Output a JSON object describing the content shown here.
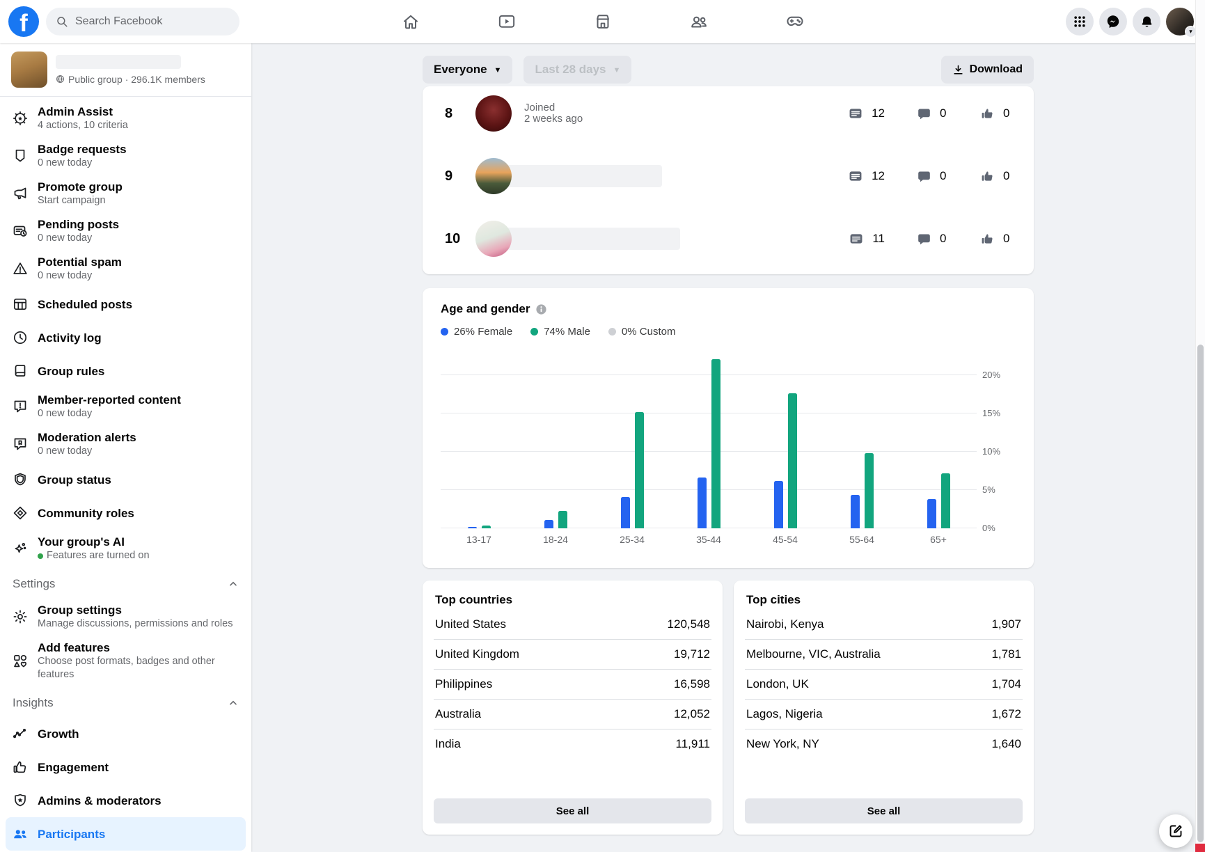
{
  "colors": {
    "facebook_blue": "#1877f2",
    "active_item_bg": "#e7f3ff",
    "female_blue": "#2463f0",
    "male_green": "#12a57e",
    "custom_gray": "#ced0d4",
    "background": "#f0f2f5",
    "text_secondary": "#65676b",
    "online_green": "#31a24c"
  },
  "topbar": {
    "search_placeholder": "Search Facebook",
    "nav_tabs": [
      {
        "icon": "home"
      },
      {
        "icon": "watch"
      },
      {
        "icon": "marketplace"
      },
      {
        "icon": "groups"
      },
      {
        "icon": "gaming"
      }
    ],
    "actions": [
      {
        "icon": "apps-grid"
      },
      {
        "icon": "messenger"
      },
      {
        "icon": "notifications"
      },
      {
        "icon": "account-avatar"
      }
    ]
  },
  "sidebar": {
    "group": {
      "privacy_and_members": "Public group · 296.1K members"
    },
    "items": [
      {
        "icon": "admin-assist",
        "label": "Admin Assist",
        "sub": "4 actions, 10 criteria"
      },
      {
        "icon": "badge",
        "label": "Badge requests",
        "sub": "0 new today"
      },
      {
        "icon": "megaphone",
        "label": "Promote group",
        "sub": "Start campaign"
      },
      {
        "icon": "pending-posts",
        "label": "Pending posts",
        "sub": "0 new today"
      },
      {
        "icon": "warning",
        "label": "Potential spam",
        "sub": "0 new today"
      },
      {
        "icon": "calendar",
        "label": "Scheduled posts"
      },
      {
        "icon": "clock",
        "label": "Activity log"
      },
      {
        "icon": "book",
        "label": "Group rules"
      },
      {
        "icon": "report",
        "label": "Member-reported content",
        "sub": "0 new today"
      },
      {
        "icon": "mod-alert",
        "label": "Moderation alerts",
        "sub": "0 new today"
      },
      {
        "icon": "shield",
        "label": "Group status"
      },
      {
        "icon": "diamond",
        "label": "Community roles"
      },
      {
        "icon": "ai-sparkle",
        "label": "Your group's AI",
        "sub": "Features are turned on",
        "sub_dot": true
      }
    ],
    "settings_header": "Settings",
    "settings_items": [
      {
        "icon": "gear",
        "label": "Group settings",
        "sub": "Manage discussions, permissions and roles"
      },
      {
        "icon": "shapes",
        "label": "Add features",
        "sub": "Choose post formats, badges and other features"
      }
    ],
    "insights_header": "Insights",
    "insights_items": [
      {
        "icon": "growth",
        "label": "Growth"
      },
      {
        "icon": "thumb",
        "label": "Engagement"
      },
      {
        "icon": "shield-star",
        "label": "Admins & moderators"
      },
      {
        "icon": "people",
        "label": "Participants",
        "active": true
      }
    ]
  },
  "toolbar": {
    "audience_filter": "Everyone",
    "date_filter": "Last 28 days",
    "download_label": "Download"
  },
  "participants": {
    "rows": [
      {
        "rank": "8",
        "joined_line1": "Joined",
        "joined_line2": "2 weeks ago",
        "posts": "12",
        "comments": "0",
        "reactions": "0",
        "name_redacted": false,
        "avatar_gradient": "radial-gradient(circle at 50% 40%, #8a2f2f 0%, #5c1414 55%, #2e0808 100%)"
      },
      {
        "rank": "9",
        "posts": "12",
        "comments": "0",
        "reactions": "0",
        "name_redacted": true,
        "redact_width": 250,
        "avatar_gradient": "linear-gradient(180deg, #9ebbd0 0%, #e8a45c 40%, #4a5a3a 70%, #2e3a28 100%)"
      },
      {
        "rank": "10",
        "posts": "11",
        "comments": "0",
        "reactions": "0",
        "name_redacted": true,
        "redact_width": 276,
        "avatar_gradient": "linear-gradient(160deg, #f2efe9 0%, #dfe8df 45%, #e8a7b8 75%, #c2577e 100%)"
      }
    ]
  },
  "chart_data": {
    "type": "bar",
    "title": "Age and gender",
    "categories": [
      "13-17",
      "18-24",
      "25-34",
      "35-44",
      "45-54",
      "55-64",
      "65+"
    ],
    "series": [
      {
        "name": "Female",
        "legend": "26% Female",
        "color": "#2463f0",
        "values": [
          0.2,
          1.1,
          4.1,
          6.6,
          6.2,
          4.4,
          3.8
        ]
      },
      {
        "name": "Male",
        "legend": "74% Male",
        "color": "#12a57e",
        "values": [
          0.4,
          2.3,
          15.2,
          22.1,
          17.6,
          9.8,
          7.2
        ]
      },
      {
        "name": "Custom",
        "legend": "0% Custom",
        "color": "#ced0d4",
        "values": [
          0,
          0,
          0,
          0,
          0,
          0,
          0
        ]
      }
    ],
    "yticks": [
      {
        "label": "0%",
        "value": 0
      },
      {
        "label": "5%",
        "value": 5
      },
      {
        "label": "10%",
        "value": 10
      },
      {
        "label": "15%",
        "value": 15
      },
      {
        "label": "20%",
        "value": 20
      }
    ],
    "ylim": [
      0,
      22.9
    ],
    "grid": true,
    "legend_position": "top",
    "yaxis_side": "right"
  },
  "top_countries": {
    "title": "Top countries",
    "rows": [
      {
        "name": "United States",
        "value": "120,548"
      },
      {
        "name": "United Kingdom",
        "value": "19,712"
      },
      {
        "name": "Philippines",
        "value": "16,598"
      },
      {
        "name": "Australia",
        "value": "12,052"
      },
      {
        "name": "India",
        "value": "11,911"
      }
    ],
    "see_all": "See all"
  },
  "top_cities": {
    "title": "Top cities",
    "rows": [
      {
        "name": "Nairobi, Kenya",
        "value": "1,907"
      },
      {
        "name": "Melbourne, VIC, Australia",
        "value": "1,781"
      },
      {
        "name": "London, UK",
        "value": "1,704"
      },
      {
        "name": "Lagos, Nigeria",
        "value": "1,672"
      },
      {
        "name": "New York, NY",
        "value": "1,640"
      }
    ],
    "see_all": "See all"
  }
}
